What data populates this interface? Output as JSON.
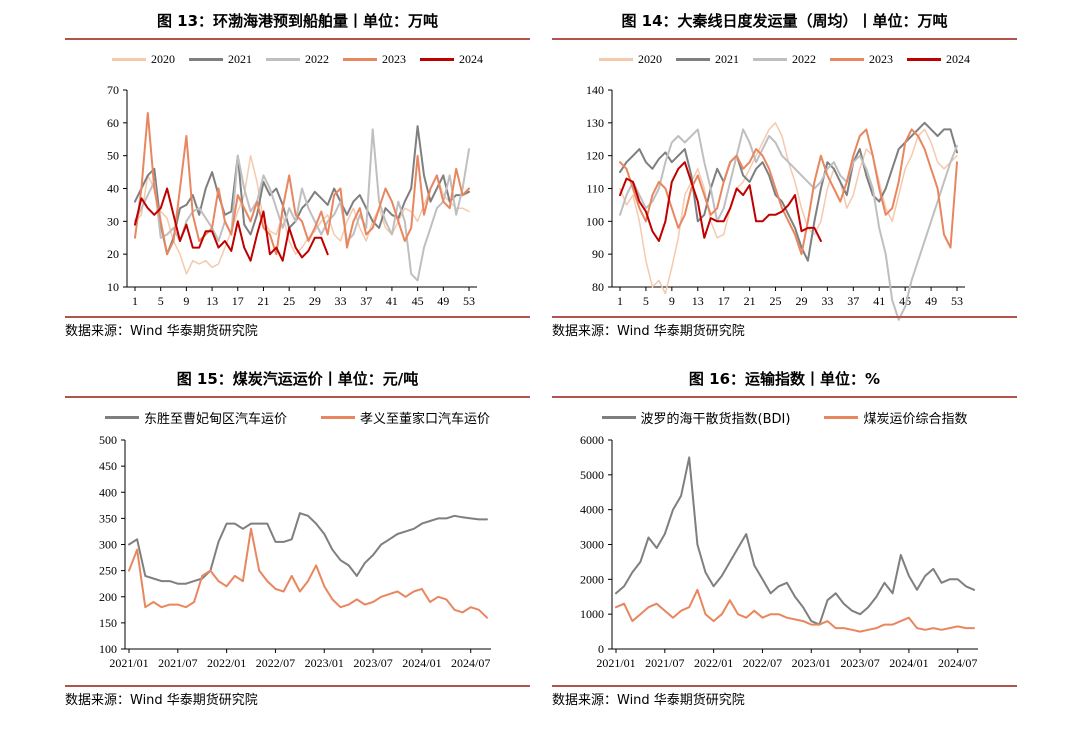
{
  "source_text": "数据来源：Wind 华泰期货研究院",
  "chart_data": [
    {
      "id": "fig13",
      "title": "图 13：环渤海港预到船舶量丨单位：万吨",
      "type": "line",
      "ylim": [
        10,
        70
      ],
      "yticks": [
        10,
        20,
        30,
        40,
        50,
        60,
        70
      ],
      "xlim": [
        1,
        53
      ],
      "xticks": [
        1,
        5,
        9,
        13,
        17,
        21,
        25,
        29,
        33,
        37,
        41,
        45,
        49,
        53
      ],
      "series": [
        {
          "name": "2020",
          "color": "#f5c9ad",
          "width": 1.5,
          "values": [
            30,
            32,
            44,
            40,
            33,
            31,
            24,
            20,
            14,
            18,
            17,
            18,
            16,
            17,
            22,
            27,
            33,
            38,
            50,
            42,
            30,
            27,
            26,
            32,
            24,
            20,
            22,
            25,
            27,
            30,
            32,
            26,
            24,
            30,
            34,
            28,
            24,
            30,
            34,
            28,
            26,
            30,
            34,
            33,
            30,
            35,
            40,
            44,
            38,
            36,
            34,
            34,
            33
          ]
        },
        {
          "name": "2021",
          "color": "#7f7f7f",
          "width": 2,
          "values": [
            36,
            40,
            44,
            46,
            29,
            20,
            25,
            34,
            35,
            38,
            32,
            40,
            45,
            38,
            32,
            33,
            50,
            29,
            26,
            32,
            42,
            38,
            40,
            35,
            28,
            30,
            34,
            36,
            39,
            37,
            35,
            40,
            36,
            32,
            36,
            38,
            34,
            30,
            28,
            34,
            32,
            31,
            36,
            40,
            59,
            44,
            36,
            40,
            44,
            36,
            38,
            38,
            39
          ]
        },
        {
          "name": "2022",
          "color": "#bfbfbf",
          "width": 2,
          "values": [
            30,
            34,
            38,
            42,
            25,
            26,
            28,
            24,
            30,
            33,
            34,
            31,
            28,
            24,
            30,
            26,
            50,
            40,
            33,
            36,
            44,
            40,
            34,
            28,
            34,
            30,
            40,
            34,
            30,
            26,
            30,
            32,
            36,
            24,
            26,
            32,
            28,
            58,
            36,
            30,
            26,
            36,
            30,
            14,
            12,
            22,
            28,
            34,
            36,
            44,
            32,
            40,
            52
          ]
        },
        {
          "name": "2023",
          "color": "#e8875f",
          "width": 2,
          "values": [
            25,
            40,
            63,
            40,
            30,
            20,
            24,
            40,
            56,
            32,
            24,
            26,
            28,
            40,
            30,
            26,
            38,
            34,
            30,
            36,
            28,
            26,
            20,
            34,
            44,
            32,
            30,
            24,
            28,
            33,
            26,
            38,
            40,
            22,
            30,
            34,
            26,
            28,
            34,
            40,
            36,
            30,
            24,
            28,
            50,
            32,
            40,
            44,
            36,
            34,
            46,
            38,
            40
          ]
        },
        {
          "name": "2024",
          "color": "#c00000",
          "width": 2,
          "values": [
            29,
            37,
            34,
            32,
            34,
            40,
            32,
            24,
            29,
            22,
            22,
            27,
            27,
            22,
            24,
            21,
            30,
            22,
            18,
            26,
            33,
            20,
            22,
            18,
            28,
            22,
            19,
            21,
            25,
            25,
            20
          ]
        }
      ]
    },
    {
      "id": "fig14",
      "title": "图 14：大秦线日度发运量（周均）丨单位：万吨",
      "type": "line",
      "ylim": [
        80,
        140
      ],
      "yticks": [
        80,
        90,
        100,
        110,
        120,
        130,
        140
      ],
      "xlim": [
        1,
        53
      ],
      "xticks": [
        1,
        5,
        9,
        13,
        17,
        21,
        25,
        29,
        33,
        37,
        41,
        45,
        49,
        53
      ],
      "series": [
        {
          "name": "2020",
          "color": "#f5c9ad",
          "width": 1.5,
          "values": [
            110,
            105,
            108,
            100,
            88,
            80,
            82,
            78,
            86,
            95,
            108,
            112,
            116,
            110,
            100,
            95,
            96,
            104,
            110,
            112,
            116,
            120,
            124,
            128,
            130,
            126,
            118,
            112,
            104,
            98,
            96,
            100,
            110,
            116,
            112,
            104,
            108,
            116,
            122,
            120,
            112,
            104,
            100,
            108,
            116,
            120,
            126,
            128,
            124,
            118,
            116,
            118,
            120
          ]
        },
        {
          "name": "2021",
          "color": "#7f7f7f",
          "width": 2,
          "values": [
            115,
            118,
            120,
            122,
            118,
            116,
            119,
            121,
            118,
            120,
            122,
            114,
            100,
            102,
            110,
            116,
            112,
            118,
            120,
            114,
            112,
            116,
            118,
            114,
            108,
            106,
            102,
            98,
            92,
            88,
            100,
            110,
            118,
            116,
            112,
            108,
            118,
            122,
            114,
            108,
            106,
            110,
            116,
            122,
            124,
            126,
            128,
            130,
            128,
            126,
            128,
            128,
            121
          ]
        },
        {
          "name": "2022",
          "color": "#bfbfbf",
          "width": 2,
          "values": [
            102,
            108,
            112,
            108,
            104,
            106,
            110,
            118,
            124,
            126,
            124,
            126,
            128,
            118,
            110,
            100,
            104,
            112,
            120,
            128,
            124,
            118,
            122,
            126,
            124,
            120,
            118,
            116,
            114,
            112,
            110,
            112,
            116,
            118,
            114,
            112,
            118,
            120,
            116,
            110,
            98,
            90,
            76,
            70,
            74,
            82,
            88,
            94,
            100,
            106,
            112,
            118,
            123
          ]
        },
        {
          "name": "2023",
          "color": "#e8875f",
          "width": 2,
          "values": [
            118,
            116,
            110,
            104,
            100,
            108,
            112,
            110,
            104,
            98,
            102,
            110,
            114,
            108,
            102,
            104,
            112,
            118,
            120,
            116,
            118,
            122,
            120,
            116,
            110,
            104,
            100,
            96,
            90,
            100,
            112,
            120,
            114,
            110,
            106,
            112,
            120,
            126,
            128,
            120,
            110,
            102,
            104,
            112,
            124,
            128,
            126,
            122,
            116,
            110,
            96,
            92,
            118
          ]
        },
        {
          "name": "2024",
          "color": "#c00000",
          "width": 2,
          "values": [
            108,
            113,
            112,
            106,
            103,
            97,
            94,
            100,
            112,
            116,
            118,
            112,
            106,
            95,
            101,
            100,
            100,
            104,
            110,
            108,
            111,
            100,
            100,
            102,
            102,
            103,
            105,
            108,
            97,
            98,
            98,
            94
          ]
        }
      ]
    },
    {
      "id": "fig15",
      "title": "图 15：煤炭汽运运价丨单位：元/吨",
      "type": "line",
      "ylim": [
        100,
        500
      ],
      "yticks": [
        100,
        150,
        200,
        250,
        300,
        350,
        400,
        450,
        500
      ],
      "x": [
        "2021-01",
        "2021-02",
        "2021-03",
        "2021-04",
        "2021-05",
        "2021-06",
        "2021-07",
        "2021-08",
        "2021-09",
        "2021-10",
        "2021-11",
        "2021-12",
        "2022-01",
        "2022-02",
        "2022-03",
        "2022-04",
        "2022-05",
        "2022-06",
        "2022-07",
        "2022-08",
        "2022-09",
        "2022-10",
        "2022-11",
        "2022-12",
        "2023-01",
        "2023-02",
        "2023-03",
        "2023-04",
        "2023-05",
        "2023-06",
        "2023-07",
        "2023-08",
        "2023-09",
        "2023-10",
        "2023-11",
        "2023-12",
        "2024-01",
        "2024-02",
        "2024-03",
        "2024-04",
        "2024-05",
        "2024-06",
        "2024-07",
        "2024-08",
        "2024-09"
      ],
      "xticks": [
        "2021/01",
        "2021/07",
        "2022/01",
        "2022/07",
        "2023/01",
        "2023/07",
        "2024/01",
        "2024/07"
      ],
      "series": [
        {
          "name": "东胜至曹妃甸区汽车运价",
          "color": "#7f7f7f",
          "width": 2,
          "values": [
            300,
            310,
            240,
            235,
            230,
            230,
            225,
            225,
            230,
            235,
            250,
            305,
            340,
            340,
            330,
            340,
            340,
            340,
            305,
            305,
            310,
            360,
            355,
            340,
            320,
            290,
            270,
            260,
            240,
            265,
            280,
            300,
            310,
            320,
            325,
            330,
            340,
            345,
            350,
            350,
            355,
            352,
            350,
            348,
            348
          ]
        },
        {
          "name": "孝义至董家口汽车运价",
          "color": "#e8875f",
          "width": 2,
          "values": [
            250,
            290,
            180,
            190,
            180,
            185,
            185,
            180,
            190,
            240,
            250,
            230,
            220,
            240,
            230,
            330,
            250,
            230,
            215,
            210,
            240,
            210,
            230,
            260,
            220,
            195,
            180,
            185,
            195,
            185,
            190,
            200,
            205,
            210,
            200,
            210,
            215,
            190,
            200,
            195,
            175,
            170,
            180,
            175,
            160
          ]
        }
      ]
    },
    {
      "id": "fig16",
      "title": "图 16：运输指数丨单位：%",
      "type": "line",
      "ylim": [
        0,
        6000
      ],
      "yticks": [
        0,
        1000,
        2000,
        3000,
        4000,
        5000,
        6000
      ],
      "x": [
        "2021-01",
        "2021-02",
        "2021-03",
        "2021-04",
        "2021-05",
        "2021-06",
        "2021-07",
        "2021-08",
        "2021-09",
        "2021-10",
        "2021-11",
        "2021-12",
        "2022-01",
        "2022-02",
        "2022-03",
        "2022-04",
        "2022-05",
        "2022-06",
        "2022-07",
        "2022-08",
        "2022-09",
        "2022-10",
        "2022-11",
        "2022-12",
        "2023-01",
        "2023-02",
        "2023-03",
        "2023-04",
        "2023-05",
        "2023-06",
        "2023-07",
        "2023-08",
        "2023-09",
        "2023-10",
        "2023-11",
        "2023-12",
        "2024-01",
        "2024-02",
        "2024-03",
        "2024-04",
        "2024-05",
        "2024-06",
        "2024-07",
        "2024-08",
        "2024-09"
      ],
      "xticks": [
        "2021/01",
        "2021/07",
        "2022/01",
        "2022/07",
        "2023/01",
        "2023/07",
        "2024/01",
        "2024/07"
      ],
      "series": [
        {
          "name": "波罗的海干散货指数(BDI)",
          "color": "#7f7f7f",
          "width": 2,
          "values": [
            1600,
            1800,
            2200,
            2500,
            3200,
            2900,
            3300,
            4000,
            4400,
            5500,
            3000,
            2200,
            1800,
            2100,
            2500,
            2900,
            3300,
            2400,
            2000,
            1600,
            1800,
            1900,
            1500,
            1200,
            800,
            700,
            1400,
            1600,
            1300,
            1100,
            1000,
            1200,
            1500,
            1900,
            1600,
            2700,
            2100,
            1700,
            2100,
            2300,
            1900,
            2000,
            2000,
            1800,
            1700
          ]
        },
        {
          "name": "煤炭运价综合指数",
          "color": "#e8875f",
          "width": 2,
          "values": [
            1200,
            1300,
            800,
            1000,
            1200,
            1300,
            1100,
            900,
            1100,
            1200,
            1700,
            1000,
            800,
            1000,
            1400,
            1000,
            900,
            1100,
            900,
            1000,
            1000,
            900,
            850,
            800,
            700,
            700,
            800,
            600,
            600,
            550,
            500,
            550,
            600,
            700,
            700,
            800,
            900,
            600,
            550,
            600,
            550,
            600,
            650,
            600,
            600
          ]
        }
      ]
    }
  ]
}
